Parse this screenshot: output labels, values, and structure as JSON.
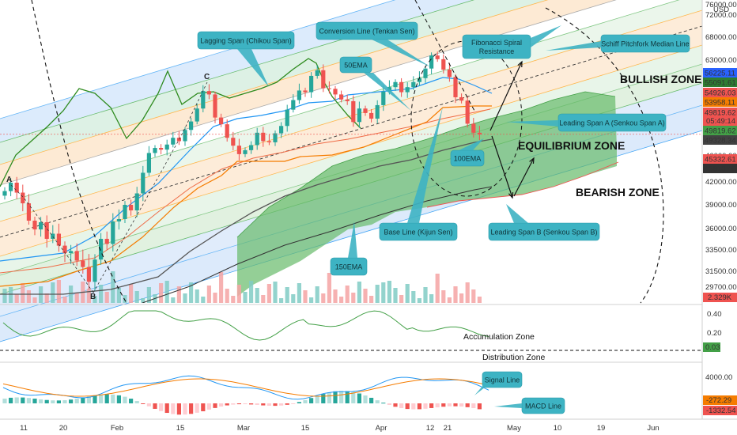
{
  "chart_data": {
    "type": "candlestick",
    "currency": "USD",
    "price_axis_ticks": [
      {
        "v": 76000,
        "t": "76000.00"
      },
      {
        "v": 72000,
        "t": "72000.00"
      },
      {
        "v": 68000,
        "t": "68000.00"
      },
      {
        "v": 63000,
        "t": "63000.00"
      },
      {
        "v": 46000,
        "t": "46000.00"
      },
      {
        "v": 42000,
        "t": "42000.00"
      },
      {
        "v": 39000,
        "t": "39000.00"
      },
      {
        "v": 36000,
        "t": "36000.00"
      },
      {
        "v": 33500,
        "t": "33500.00"
      },
      {
        "v": 31500,
        "t": "31500.00"
      },
      {
        "v": 29700,
        "t": "29700.00"
      }
    ],
    "price_labels": [
      {
        "v": 56225.11,
        "t": "56225.11",
        "color": "#2962ff"
      },
      {
        "v": 55091.61,
        "t": "55091.61",
        "color": "#2e7d32"
      },
      {
        "v": 54926.03,
        "t": "54926.03",
        "color": "#ef5350"
      },
      {
        "v": 53958.11,
        "t": "53958.11",
        "color": "#f57c00"
      },
      {
        "v": 49819.62,
        "t": "49819.62",
        "color": "#ef5350"
      },
      {
        "v": 49819.62,
        "t": "49819.62",
        "color": "#43a047"
      },
      {
        "v": 49328.34,
        "t": "49328.34",
        "color": "#424242"
      },
      {
        "v": 45332.61,
        "t": "45332.61",
        "color": "#ef5350"
      },
      {
        "v": 43810.4,
        "t": "43810.40",
        "color": "#333333"
      }
    ],
    "countdown": "05:49:14",
    "volume_label": "2.329K",
    "date_axis": [
      "11",
      "20",
      "Feb",
      "15",
      "Mar",
      "15",
      "Apr",
      "12",
      "21",
      "May",
      "10",
      "19",
      "Jun"
    ],
    "indicator1_ticks": [
      "0.40",
      "0.20"
    ],
    "indicator1_value": "0.03",
    "macd_ticks": [
      "4000.00"
    ],
    "macd_values": [
      "-272.29",
      "-1332.54"
    ],
    "pivot_labels": [
      "A",
      "B",
      "C"
    ],
    "closes": [
      40800,
      41900,
      40600,
      39200,
      37000,
      35900,
      36800,
      34800,
      35400,
      34000,
      33200,
      33400,
      32500,
      31900,
      30300,
      32600,
      34800,
      34200,
      36900,
      37200,
      39000,
      38300,
      40500,
      43400,
      46500,
      47400,
      47100,
      48000,
      49200,
      48600,
      50600,
      52100,
      54400,
      57500,
      56900,
      52800,
      51600,
      49200,
      47800,
      46300,
      47000,
      47900,
      50100,
      48600,
      48400,
      50000,
      51300,
      54200,
      55900,
      57600,
      57300,
      60200,
      61200,
      58000,
      57900,
      56900,
      56000,
      55700,
      52000,
      54400,
      53600,
      52600,
      55000,
      57400,
      58200,
      59100,
      57300,
      58200,
      59100,
      59800,
      61500,
      64000,
      63200,
      61300,
      60000,
      56400,
      55800,
      51700,
      50100,
      49800
    ],
    "zones": {
      "bullish": "BULLISH ZONE",
      "equilibrium": "EQUILIBRIUM ZONE",
      "bearish": "BEARISH ZONE"
    },
    "callouts": {
      "lagging": "Lagging Span (Chikou Span)",
      "conversion": "Conversion Line (Tenkan Sen)",
      "ema50": "50EMA",
      "fib": "Fibonacci Spiral Resistance",
      "pitchfork": "Schiff Pitchfork Median Line",
      "spanA": "Leading Span A (Senkou Span A)",
      "ema100": "100EMA",
      "baseline": "Base Line (Kijun Sen)",
      "spanB": "Leading Span B (Senkou Span B)",
      "ema150": "150EMA",
      "signal": "Signal Line",
      "macd": "MACD Line"
    },
    "zone_texts": {
      "accumulation": "Accumulation Zone",
      "distribution": "Distribution Zone"
    },
    "colors": {
      "up": "#26a69a",
      "down": "#ef5350",
      "cloud": "#66bb6a",
      "callout": "#3db3c3",
      "lagging": "#2e8b1e",
      "conversion": "#2196f3",
      "base": "#f57c00"
    }
  }
}
